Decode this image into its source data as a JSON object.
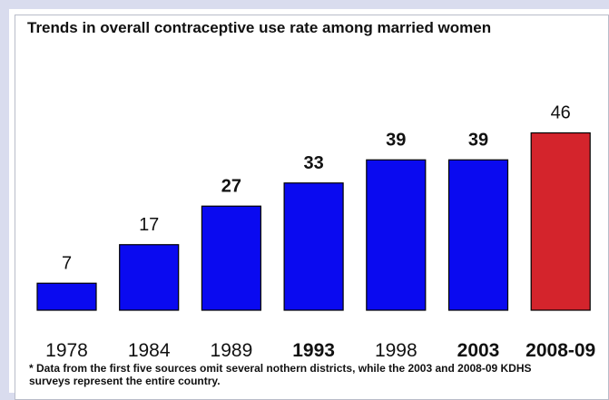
{
  "chart_data": {
    "type": "bar",
    "title": "Trends in overall contraceptive use rate among married women",
    "categories": [
      "1978",
      "1984",
      "1989",
      "1993",
      "1998",
      "2003",
      "2008-09"
    ],
    "values": [
      7,
      17,
      27,
      33,
      39,
      39,
      46
    ],
    "value_labels": [
      "7",
      "17",
      "27",
      "33",
      "39",
      "39",
      "46"
    ],
    "bold_value_labels": [
      false,
      false,
      true,
      true,
      true,
      true,
      false
    ],
    "bold_categories": [
      false,
      false,
      false,
      true,
      false,
      true,
      true
    ],
    "bar_colors": [
      "#0a0af0",
      "#0a0af0",
      "#0a0af0",
      "#0a0af0",
      "#0a0af0",
      "#0a0af0",
      "#d4242c"
    ],
    "xlabel": "",
    "ylabel": "",
    "ylim": [
      0,
      50
    ],
    "grid": false,
    "legend": "none"
  },
  "footnote": "* Data from the first five sources omit several nothern districts, while the 2003 and 2008-09 KDHS surveys represent the entire country."
}
